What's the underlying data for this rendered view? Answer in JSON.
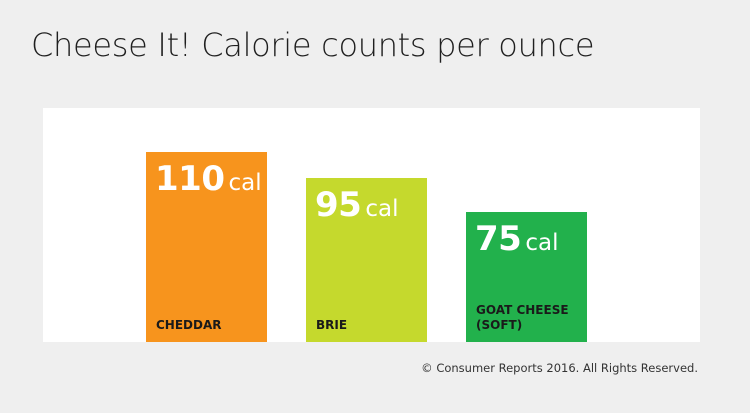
{
  "title": "Cheese It! Calorie counts per ounce",
  "copyright": "© Consumer Reports 2016. All Rights Reserved.",
  "colors": {
    "background": "#efefef",
    "panel": "#ffffff",
    "cheddar": "#f7941d",
    "brie": "#c5d92d",
    "goat_cheese": "#22b14c"
  },
  "chart_data": {
    "type": "bar",
    "title": "Cheese It! Calorie counts per ounce",
    "xlabel": "",
    "ylabel": "",
    "ylim": [
      0,
      110
    ],
    "grid": false,
    "legend": "none",
    "unit": "cal",
    "categories": [
      "CHEDDAR",
      "BRIE",
      "GOAT CHEESE (SOFT)"
    ],
    "values": [
      110,
      95,
      75
    ],
    "bar_colors": [
      "#f7941d",
      "#c5d92d",
      "#22b14c"
    ]
  }
}
